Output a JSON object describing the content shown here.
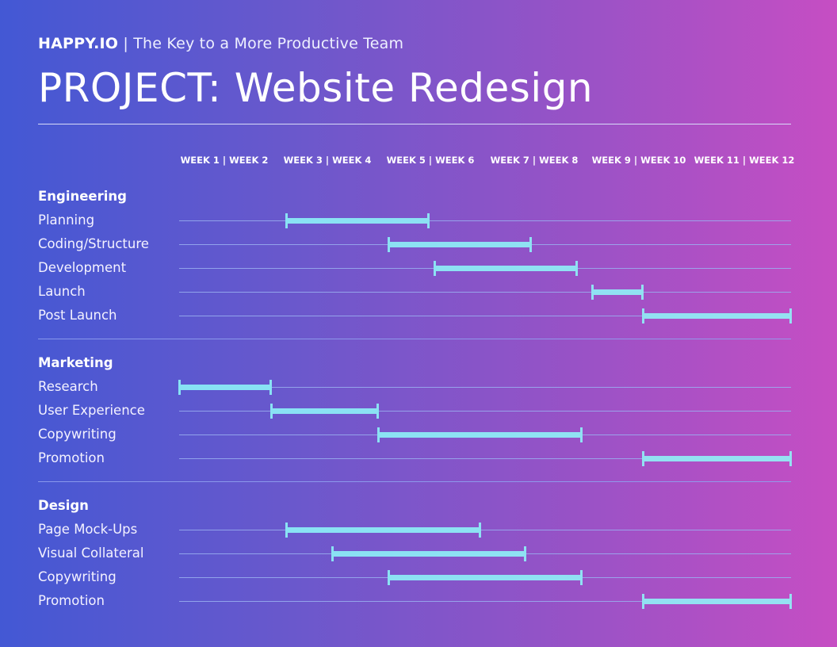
{
  "header": {
    "brand": "HAPPY.IO",
    "separator": "|",
    "tagline": "The Key to a More Productive Team",
    "title": "PROJECT: Website Redesign"
  },
  "colors": {
    "gradient_left": "#4358d4",
    "gradient_right": "#c64ec3",
    "bar": "#8ffbfb",
    "track": "#9ab0f0",
    "text": "#ffffff"
  },
  "chart_data": {
    "type": "gantt",
    "title": "PROJECT: Website Redesign",
    "subtitle": "HAPPY.IO | The Key to a More Productive Team",
    "x_unit": "weeks",
    "xlim": [
      0,
      12
    ],
    "tick_labels": [
      "WEEK 1 | WEEK 2",
      "WEEK 3 | WEEK 4",
      "WEEK 5 | WEEK 6",
      "WEEK 7 | WEEK 8",
      "WEEK 9 | WEEK 10",
      "WEEK 11 | WEEK 12"
    ],
    "grid": false,
    "sections": [
      {
        "name": "Engineering",
        "tasks": [
          {
            "name": "Planning",
            "start": 2.1,
            "end": 4.9
          },
          {
            "name": "Coding/Structure",
            "start": 4.1,
            "end": 6.9
          },
          {
            "name": "Development",
            "start": 5.0,
            "end": 7.8
          },
          {
            "name": "Launch",
            "start": 8.1,
            "end": 9.1
          },
          {
            "name": "Post Launch",
            "start": 9.1,
            "end": 12.0
          }
        ]
      },
      {
        "name": "Marketing",
        "tasks": [
          {
            "name": "Research",
            "start": 0.0,
            "end": 1.8
          },
          {
            "name": "User Experience",
            "start": 1.8,
            "end": 3.9
          },
          {
            "name": "Copywriting",
            "start": 3.9,
            "end": 7.9
          },
          {
            "name": "Promotion",
            "start": 9.1,
            "end": 12.0
          }
        ]
      },
      {
        "name": "Design",
        "tasks": [
          {
            "name": "Page Mock-Ups",
            "start": 2.1,
            "end": 5.9
          },
          {
            "name": "Visual Collateral",
            "start": 3.0,
            "end": 6.8
          },
          {
            "name": "Copywriting",
            "start": 4.1,
            "end": 7.9
          },
          {
            "name": "Promotion",
            "start": 9.1,
            "end": 12.0
          }
        ]
      }
    ]
  }
}
